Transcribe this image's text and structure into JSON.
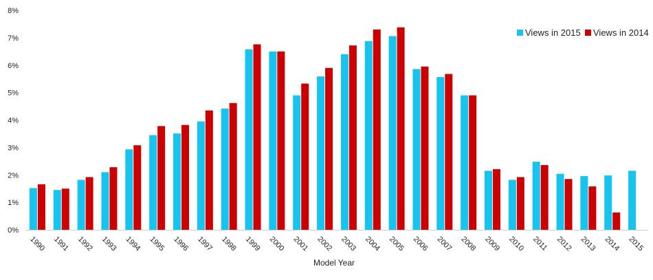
{
  "chart_data": {
    "type": "bar",
    "title": "",
    "xlabel": "Model Year",
    "ylabel": "",
    "ylim": [
      0,
      8
    ],
    "y_ticks": [
      0,
      1,
      2,
      3,
      4,
      5,
      6,
      7,
      8
    ],
    "y_tick_labels": [
      "0%",
      "1%",
      "2%",
      "3%",
      "4%",
      "5%",
      "6%",
      "7%",
      "8%"
    ],
    "grid": false,
    "legend_position": "top-right",
    "categories": [
      "1990",
      "1991",
      "1992",
      "1993",
      "1994",
      "1995",
      "1996",
      "1997",
      "1998",
      "1999",
      "2000",
      "2001",
      "2002",
      "2003",
      "2004",
      "2005",
      "2006",
      "2007",
      "2008",
      "2009",
      "2010",
      "2011",
      "2012",
      "2013",
      "2014",
      "2015"
    ],
    "series": [
      {
        "name": "Views in 2015",
        "color": "#17c4f0",
        "values": [
          1.52,
          1.45,
          1.82,
          2.1,
          2.93,
          3.45,
          3.51,
          3.95,
          4.42,
          6.58,
          6.5,
          4.9,
          5.59,
          6.4,
          6.88,
          7.06,
          5.86,
          5.57,
          4.9,
          2.15,
          1.82,
          2.48,
          2.04,
          1.96,
          1.98,
          2.15
        ]
      },
      {
        "name": "Views in 2014",
        "color": "#cc0000",
        "values": [
          1.66,
          1.5,
          1.92,
          2.28,
          3.08,
          3.78,
          3.82,
          4.35,
          4.62,
          6.76,
          6.5,
          5.33,
          5.9,
          6.72,
          7.3,
          7.38,
          5.95,
          5.68,
          4.9,
          2.21,
          1.92,
          2.36,
          1.85,
          1.58,
          0.63,
          null
        ]
      }
    ]
  }
}
